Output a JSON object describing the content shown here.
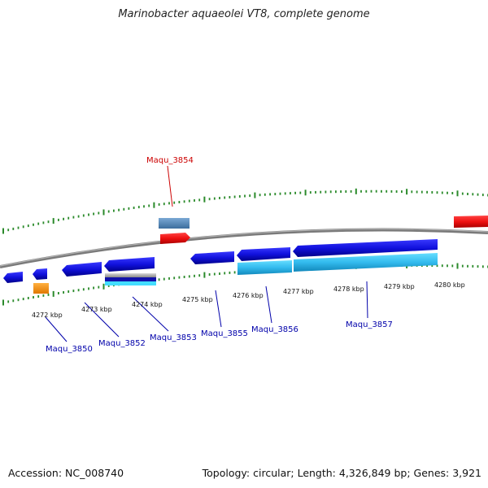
{
  "title": "Marinobacter aquaeolei VT8, complete genome",
  "footer": {
    "accession": "Accession: NC_008740",
    "summary": "Topology: circular; Length: 4,326,849 bp; Genes: 3,921"
  },
  "ticks": [
    "4272 kbp",
    "4273 kbp",
    "4274 kbp",
    "4275 kbp",
    "4276 kbp",
    "4277 kbp",
    "4278 kbp",
    "4279 kbp",
    "4280 kbp"
  ],
  "gene_labels": [
    {
      "text": "Maqu_3854",
      "color": "#cc0000"
    },
    {
      "text": "Maqu_3850",
      "color": "#0000aa"
    },
    {
      "text": "Maqu_3852",
      "color": "#0000aa"
    },
    {
      "text": "Maqu_3853",
      "color": "#0000aa"
    },
    {
      "text": "Maqu_3855",
      "color": "#0000aa"
    },
    {
      "text": "Maqu_3856",
      "color": "#0000aa"
    },
    {
      "text": "Maqu_3857",
      "color": "#0000aa"
    }
  ],
  "colors": {
    "forward_gene": "#ee1111",
    "reverse_gene": "#1111dd",
    "protein_feature": "#33ccee",
    "misc_feature": "#5b8fbf",
    "orange_feature": "#ff9900",
    "backbone": "#808080",
    "tick": "#2a8a2a"
  }
}
